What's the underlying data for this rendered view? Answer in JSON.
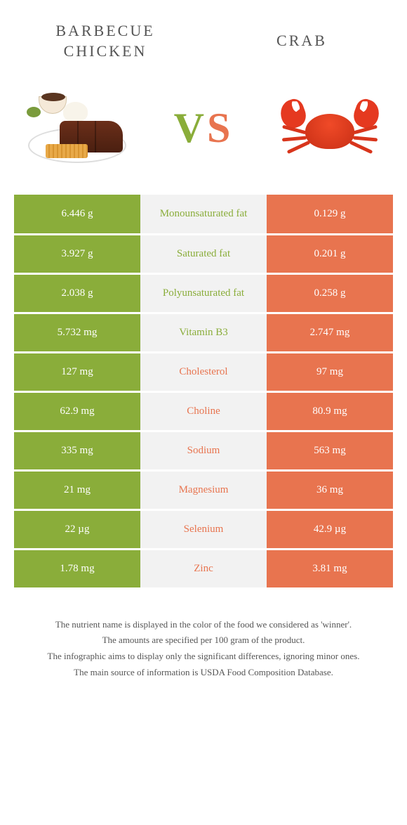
{
  "header": {
    "left_title": "Barbecue chicken",
    "right_title": "Crab",
    "vs_v": "V",
    "vs_s": "S"
  },
  "colors": {
    "left": "#8aad3a",
    "right": "#e8744f",
    "mid_bg": "#f2f2f2"
  },
  "rows": [
    {
      "left": "6.446 g",
      "label": "Monounsaturated fat",
      "right": "0.129 g",
      "winner": "left"
    },
    {
      "left": "3.927 g",
      "label": "Saturated fat",
      "right": "0.201 g",
      "winner": "left"
    },
    {
      "left": "2.038 g",
      "label": "Polyunsaturated fat",
      "right": "0.258 g",
      "winner": "left"
    },
    {
      "left": "5.732 mg",
      "label": "Vitamin B3",
      "right": "2.747 mg",
      "winner": "left"
    },
    {
      "left": "127 mg",
      "label": "Cholesterol",
      "right": "97 mg",
      "winner": "right"
    },
    {
      "left": "62.9 mg",
      "label": "Choline",
      "right": "80.9 mg",
      "winner": "right"
    },
    {
      "left": "335 mg",
      "label": "Sodium",
      "right": "563 mg",
      "winner": "right"
    },
    {
      "left": "21 mg",
      "label": "Magnesium",
      "right": "36 mg",
      "winner": "right"
    },
    {
      "left": "22 µg",
      "label": "Selenium",
      "right": "42.9 µg",
      "winner": "right"
    },
    {
      "left": "1.78 mg",
      "label": "Zinc",
      "right": "3.81 mg",
      "winner": "right"
    }
  ],
  "footer": {
    "line1": "The nutrient name is displayed in the color of the food we considered as 'winner'.",
    "line2": "The amounts are specified per 100 gram of the product.",
    "line3": "The infographic aims to display only the significant differences, ignoring minor ones.",
    "line4": "The main source of information is USDA Food Composition Database."
  }
}
